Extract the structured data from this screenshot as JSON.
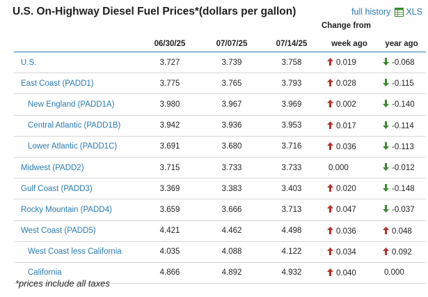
{
  "header": {
    "title": "U.S. On-Highway Diesel Fuel Prices*(dollars per gallon)",
    "full_history_label": "full history",
    "xls_label": "XLS"
  },
  "table": {
    "change_group_label": "Change from",
    "columns": [
      "06/30/25",
      "07/07/25",
      "07/14/25",
      "week ago",
      "year ago"
    ],
    "rows": [
      {
        "name": "U.S.",
        "sub": false,
        "values": [
          "3.727",
          "3.739",
          "3.758"
        ],
        "week_dir": "up",
        "week": "0.019",
        "year_dir": "down",
        "year": "-0.068"
      },
      {
        "name": "East Coast (PADD1)",
        "sub": false,
        "values": [
          "3.775",
          "3.765",
          "3.793"
        ],
        "week_dir": "up",
        "week": "0.028",
        "year_dir": "down",
        "year": "-0.115"
      },
      {
        "name": "New England (PADD1A)",
        "sub": true,
        "values": [
          "3.980",
          "3.967",
          "3.969"
        ],
        "week_dir": "up",
        "week": "0.002",
        "year_dir": "down",
        "year": "-0.140"
      },
      {
        "name": "Central Atlantic (PADD1B)",
        "sub": true,
        "values": [
          "3.942",
          "3.936",
          "3.953"
        ],
        "week_dir": "up",
        "week": "0.017",
        "year_dir": "down",
        "year": "-0.114"
      },
      {
        "name": "Lower Atlantic (PADD1C)",
        "sub": true,
        "values": [
          "3.691",
          "3.680",
          "3.716"
        ],
        "week_dir": "up",
        "week": "0.036",
        "year_dir": "down",
        "year": "-0.113"
      },
      {
        "name": "Midwest (PADD2)",
        "sub": false,
        "values": [
          "3.715",
          "3.733",
          "3.733"
        ],
        "week_dir": "none",
        "week": "0.000",
        "year_dir": "down",
        "year": "-0.012"
      },
      {
        "name": "Gulf Coast (PADD3)",
        "sub": false,
        "values": [
          "3.369",
          "3.383",
          "3.403"
        ],
        "week_dir": "up",
        "week": "0.020",
        "year_dir": "down",
        "year": "-0.148"
      },
      {
        "name": "Rocky Mountain (PADD4)",
        "sub": false,
        "values": [
          "3.659",
          "3.666",
          "3.713"
        ],
        "week_dir": "up",
        "week": "0.047",
        "year_dir": "down",
        "year": "-0.037"
      },
      {
        "name": "West Coast (PADD5)",
        "sub": false,
        "values": [
          "4.421",
          "4.462",
          "4.498"
        ],
        "week_dir": "up",
        "week": "0.036",
        "year_dir": "up",
        "year": "0.048"
      },
      {
        "name": "West Coast less California",
        "sub": true,
        "values": [
          "4.035",
          "4.088",
          "4.122"
        ],
        "week_dir": "up",
        "week": "0.034",
        "year_dir": "up",
        "year": "0.092"
      },
      {
        "name": "California",
        "sub": true,
        "values": [
          "4.866",
          "4.892",
          "4.932"
        ],
        "week_dir": "up",
        "week": "0.040",
        "year_dir": "none",
        "year": "0.000"
      }
    ]
  },
  "footnote": "*prices include all taxes",
  "colors": {
    "link": "#2a7ab0",
    "up_arrow": "#b5302a",
    "down_arrow": "#3a8a2e",
    "rule": "#2a7ab0"
  }
}
